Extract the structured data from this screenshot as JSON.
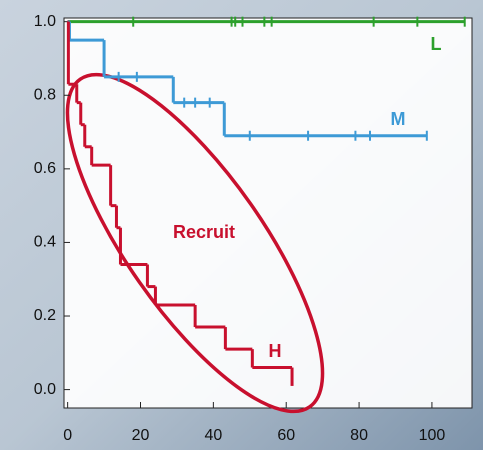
{
  "chart_data": {
    "type": "survival",
    "annotation": "Recruit",
    "annotation_color": "#c8102e",
    "xlim": [
      -1,
      111
    ],
    "ylim": [
      -0.05,
      1.01
    ],
    "xticks": [
      0,
      20,
      40,
      60,
      80,
      100
    ],
    "yticks": [
      {
        "value": 0,
        "label": "0.0"
      },
      0.2,
      0.4,
      0.6,
      0.8,
      {
        "value": 1,
        "label": "1.0"
      }
    ],
    "series": [
      {
        "name": "L",
        "color": "#2ca02c",
        "x": [
          0
        ],
        "values": [
          1
        ],
        "censored": [
          18,
          45,
          46,
          48,
          54,
          56,
          84,
          96,
          109
        ]
      },
      {
        "name": "M",
        "color": "#3d9ad6",
        "x": [
          0,
          0.5,
          10,
          29,
          43
        ],
        "values": [
          1,
          0.95,
          0.85,
          0.78,
          0.69
        ],
        "censored": [
          14,
          19,
          32,
          35,
          39,
          50,
          66,
          79,
          83,
          98.6
        ]
      },
      {
        "name": "H",
        "color": "#c8102e",
        "x": [
          0,
          0.2,
          2.5,
          3.6,
          4.7,
          6.6,
          11.8,
          13.4,
          14.5,
          21.9,
          24.1,
          35,
          43.3,
          50.7,
          61.6
        ],
        "values": [
          1,
          0.83,
          0.78,
          0.72,
          0.66,
          0.61,
          0.5,
          0.44,
          0.34,
          0.28,
          0.23,
          0.17,
          0.11,
          0.06,
          0.01
        ],
        "censored": []
      }
    ]
  }
}
